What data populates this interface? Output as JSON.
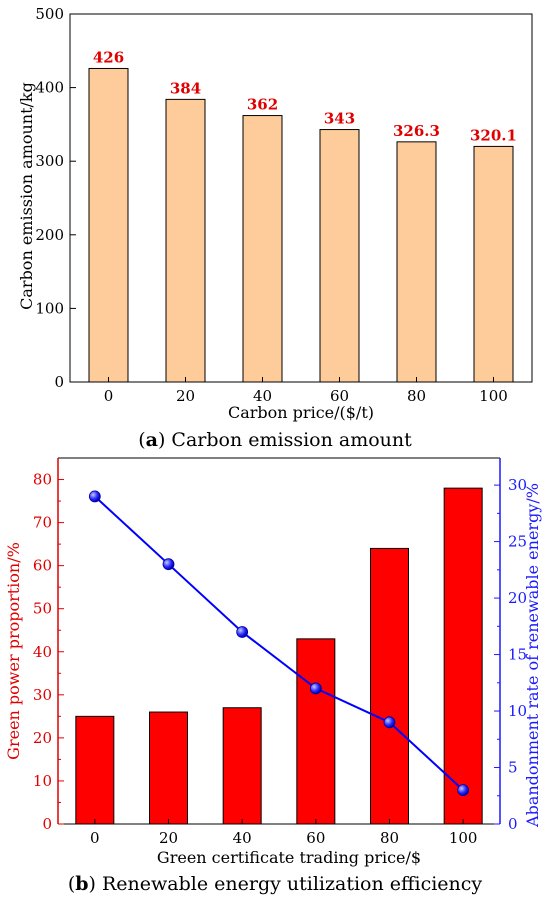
{
  "chart_data": [
    {
      "type": "bar",
      "caption_letter": "a",
      "caption_text": "Carbon emission amount",
      "categories": [
        "0",
        "20",
        "40",
        "60",
        "80",
        "100"
      ],
      "values": [
        426,
        384,
        362,
        343,
        326.3,
        320.1
      ],
      "data_labels": [
        "426",
        "384",
        "362",
        "343",
        "326.3",
        "320.1"
      ],
      "xlabel": "Carbon price/($/t)",
      "ylabel": "Carbon emission amount/kg",
      "ylim": [
        0,
        500
      ],
      "yticks": [
        0,
        100,
        200,
        300,
        400,
        500
      ],
      "colors": {
        "bar": "#fdcc9a",
        "label": "#e00000"
      },
      "grid": false
    },
    {
      "type": "bar+line",
      "caption_letter": "b",
      "caption_text": "Renewable energy utilization efficiency",
      "categories": [
        "0",
        "20",
        "40",
        "60",
        "80",
        "100"
      ],
      "xlabel": "Green certificate trading price/$",
      "series": [
        {
          "kind": "bar",
          "axis": "left",
          "values": [
            25,
            26,
            27,
            43,
            64,
            78
          ]
        },
        {
          "kind": "line",
          "axis": "right",
          "values": [
            29,
            23,
            17,
            12,
            9,
            3
          ]
        }
      ],
      "ylabel_left": "Green power proportion/%",
      "ylabel_right": "Abandonment rate of renewable energy/%",
      "ylim_left": [
        0,
        85
      ],
      "yticks_left": [
        0,
        10,
        20,
        30,
        40,
        50,
        60,
        70,
        80
      ],
      "ylim_right": [
        0,
        32.4
      ],
      "yticks_right": [
        0,
        5,
        10,
        15,
        20,
        25,
        30
      ],
      "colors": {
        "bar": "#ff0000",
        "line": "#0000ff",
        "left_axis": "#e00000",
        "right_axis": "#1a1aff"
      },
      "grid": false
    }
  ]
}
